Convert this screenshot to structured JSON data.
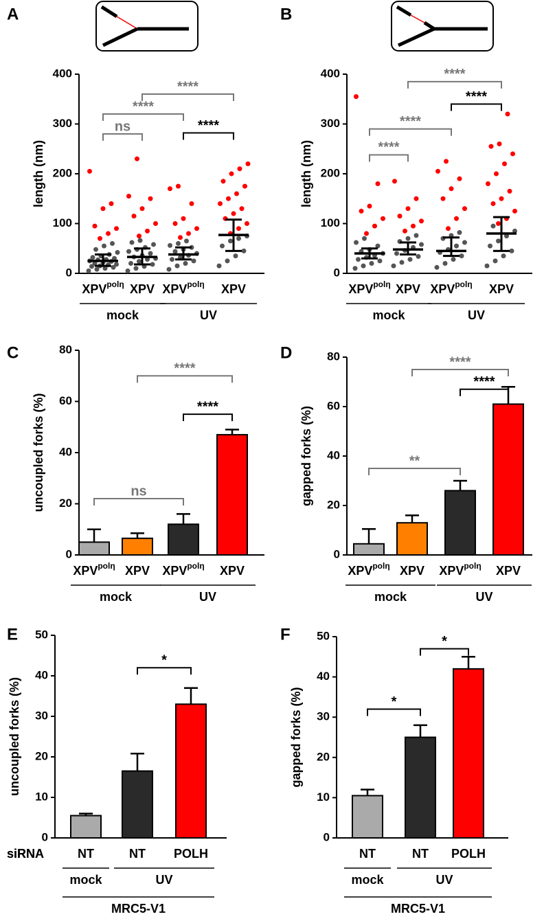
{
  "chart_data": [
    {
      "type": "dotplot",
      "panel": "A",
      "ylabel": "length (nm)",
      "ylim": [
        0,
        400
      ],
      "yticks": [
        0,
        100,
        200,
        300,
        400
      ],
      "categories": [
        {
          "text": "XPV",
          "sup": "polη"
        },
        {
          "text": "XPV"
        },
        {
          "text": "XPV",
          "sup": "polη"
        },
        {
          "text": "XPV"
        }
      ],
      "groups": [
        {
          "label": "mock",
          "from": 0,
          "to": 1
        },
        {
          "label": "UV",
          "from": 2,
          "to": 3
        }
      ],
      "point_colors": [
        "#555555",
        "#ff0000"
      ],
      "low_points": [
        [
          5,
          8,
          10,
          12,
          14,
          15,
          17,
          18,
          20,
          22,
          24,
          25,
          27,
          28,
          30,
          32,
          35,
          38,
          42,
          48,
          55,
          60
        ],
        [
          5,
          10,
          14,
          18,
          20,
          24,
          28,
          30,
          33,
          36,
          40,
          44,
          48,
          52,
          58,
          62,
          66
        ],
        [
          8,
          15,
          20,
          25,
          28,
          32,
          36,
          40,
          44,
          48,
          52,
          56,
          60,
          65
        ],
        [
          15,
          25,
          35,
          45,
          55,
          65,
          70,
          75
        ]
      ],
      "high_points": [
        [
          70,
          80,
          90,
          95,
          130,
          140,
          205
        ],
        [
          75,
          85,
          100,
          115,
          130,
          150,
          155,
          230
        ],
        [
          72,
          80,
          90,
          100,
          110,
          140,
          170,
          175
        ],
        [
          80,
          90,
          100,
          110,
          120,
          130,
          140,
          150,
          160,
          175,
          185,
          200,
          210,
          220
        ]
      ],
      "medians": [
        25,
        33,
        38,
        77
      ],
      "error_low": [
        15,
        18,
        28,
        45
      ],
      "error_high": [
        38,
        50,
        52,
        108
      ],
      "brackets": [
        {
          "from": 0,
          "to": 1,
          "y": 280,
          "label": "ns",
          "color": "#777777"
        },
        {
          "from": 0,
          "to": 2,
          "y": 320,
          "label": "****",
          "color": "#777777"
        },
        {
          "from": 1,
          "to": 3,
          "y": 360,
          "label": "****",
          "color": "#777777"
        },
        {
          "from": 2,
          "to": 3,
          "y": 282,
          "label": "****",
          "color": "#000000"
        }
      ]
    },
    {
      "type": "dotplot",
      "panel": "B",
      "ylabel": "length (nm)",
      "ylim": [
        0,
        400
      ],
      "yticks": [
        0,
        100,
        200,
        300,
        400
      ],
      "categories": [
        {
          "text": "XPV",
          "sup": "polη"
        },
        {
          "text": "XPV"
        },
        {
          "text": "XPV",
          "sup": "polη"
        },
        {
          "text": "XPV"
        }
      ],
      "groups": [
        {
          "label": "mock",
          "from": 0,
          "to": 1
        },
        {
          "label": "UV",
          "from": 2,
          "to": 3
        }
      ],
      "point_colors": [
        "#555555",
        "#ff0000"
      ],
      "low_points": [
        [
          10,
          15,
          20,
          25,
          28,
          32,
          36,
          40,
          44,
          48,
          55,
          62,
          70
        ],
        [
          15,
          22,
          28,
          34,
          40,
          46,
          52,
          58,
          64,
          70,
          76
        ],
        [
          12,
          20,
          28,
          35,
          42,
          48,
          55,
          62,
          70,
          76,
          82
        ],
        [
          15,
          25,
          35,
          45,
          55,
          65,
          75,
          85,
          95
        ]
      ],
      "high_points": [
        [
          80,
          95,
          110,
          125,
          135,
          180,
          355
        ],
        [
          85,
          95,
          105,
          115,
          130,
          150,
          185
        ],
        [
          90,
          110,
          130,
          150,
          170,
          190,
          205,
          225
        ],
        [
          100,
          110,
          125,
          140,
          150,
          165,
          180,
          200,
          220,
          240,
          255,
          260,
          320
        ]
      ],
      "medians": [
        40,
        48,
        45,
        80
      ],
      "error_low": [
        30,
        38,
        35,
        45
      ],
      "error_high": [
        50,
        62,
        72,
        113
      ],
      "brackets": [
        {
          "from": 0,
          "to": 1,
          "y": 238,
          "label": "****",
          "color": "#777777"
        },
        {
          "from": 0,
          "to": 2,
          "y": 290,
          "label": "****",
          "color": "#777777"
        },
        {
          "from": 1,
          "to": 3,
          "y": 385,
          "label": "****",
          "color": "#777777"
        },
        {
          "from": 2,
          "to": 3,
          "y": 340,
          "label": "****",
          "color": "#000000"
        }
      ]
    },
    {
      "type": "bar",
      "panel": "C",
      "ylabel": "uncoupled forks (%)",
      "ylim": [
        0,
        80
      ],
      "yticks": [
        0,
        20,
        40,
        60,
        80
      ],
      "categories": [
        {
          "text": "XPV",
          "sup": "polη"
        },
        {
          "text": "XPV"
        },
        {
          "text": "XPV",
          "sup": "polη"
        },
        {
          "text": "XPV"
        }
      ],
      "groups": [
        {
          "label": "mock",
          "from": 0,
          "to": 1
        },
        {
          "label": "UV",
          "from": 2,
          "to": 3
        }
      ],
      "values": [
        5,
        6.5,
        12,
        47
      ],
      "errors": [
        5,
        2,
        4,
        2
      ],
      "colors": [
        "#aaaaaa",
        "#ff8000",
        "#2a2a2a",
        "#ff0000"
      ],
      "brackets": [
        {
          "from": 0,
          "to": 2,
          "y": 22,
          "label": "ns",
          "color": "#777777"
        },
        {
          "from": 1,
          "to": 3,
          "y": 70,
          "label": "****",
          "color": "#777777"
        },
        {
          "from": 2,
          "to": 3,
          "y": 55,
          "label": "****",
          "color": "#000000"
        }
      ]
    },
    {
      "type": "bar",
      "panel": "D",
      "ylabel": "gapped forks (%)",
      "ylim": [
        0,
        80
      ],
      "yticks": [
        0,
        20,
        40,
        60,
        80
      ],
      "categories": [
        {
          "text": "XPV",
          "sup": "polη"
        },
        {
          "text": "XPV"
        },
        {
          "text": "XPV",
          "sup": "polη"
        },
        {
          "text": "XPV"
        }
      ],
      "groups": [
        {
          "label": "mock",
          "from": 0,
          "to": 1
        },
        {
          "label": "UV",
          "from": 2,
          "to": 3
        }
      ],
      "values": [
        4.5,
        13,
        26,
        61
      ],
      "errors": [
        6,
        3,
        4,
        7
      ],
      "colors": [
        "#aaaaaa",
        "#ff8000",
        "#2a2a2a",
        "#ff0000"
      ],
      "brackets": [
        {
          "from": 0,
          "to": 2,
          "y": 35,
          "label": "**",
          "color": "#777777"
        },
        {
          "from": 1,
          "to": 3,
          "y": 75,
          "label": "****",
          "color": "#777777"
        },
        {
          "from": 2,
          "to": 3,
          "y": 67,
          "label": "****",
          "color": "#000000"
        }
      ]
    },
    {
      "type": "bar",
      "panel": "E",
      "ylabel": "uncoupled forks (%)",
      "ylim": [
        0,
        50
      ],
      "yticks": [
        0,
        10,
        20,
        30,
        40,
        50
      ],
      "row_label": "siRNA",
      "categories": [
        {
          "text": "NT"
        },
        {
          "text": "NT"
        },
        {
          "text": "POLH"
        }
      ],
      "groups": [
        {
          "label": "mock",
          "from": 0,
          "to": 0
        },
        {
          "label": "UV",
          "from": 1,
          "to": 2
        }
      ],
      "supergroups": [
        {
          "label": "MRC5-V1",
          "from": 0,
          "to": 2
        }
      ],
      "values": [
        5.5,
        16.5,
        33
      ],
      "errors": [
        0.5,
        4.3,
        4
      ],
      "colors": [
        "#aaaaaa",
        "#2a2a2a",
        "#ff0000"
      ],
      "brackets": [
        {
          "from": 1,
          "to": 2,
          "y": 42,
          "label": "*",
          "color": "#000000"
        }
      ]
    },
    {
      "type": "bar",
      "panel": "F",
      "ylabel": "gapped forks (%)",
      "ylim": [
        0,
        50
      ],
      "yticks": [
        0,
        10,
        20,
        30,
        40,
        50
      ],
      "row_label": "siRNA",
      "categories": [
        {
          "text": "NT"
        },
        {
          "text": "NT"
        },
        {
          "text": "POLH"
        }
      ],
      "groups": [
        {
          "label": "mock",
          "from": 0,
          "to": 0
        },
        {
          "label": "UV",
          "from": 1,
          "to": 2
        }
      ],
      "supergroups": [
        {
          "label": "MRC5-V1",
          "from": 0,
          "to": 2
        }
      ],
      "values": [
        10.5,
        25,
        42
      ],
      "errors": [
        1.5,
        3,
        3
      ],
      "colors": [
        "#aaaaaa",
        "#2a2a2a",
        "#ff0000"
      ],
      "brackets": [
        {
          "from": 0,
          "to": 1,
          "y": 32,
          "label": "*",
          "color": "#000000"
        },
        {
          "from": 1,
          "to": 2,
          "y": 47,
          "label": "*",
          "color": "#000000"
        }
      ]
    }
  ]
}
